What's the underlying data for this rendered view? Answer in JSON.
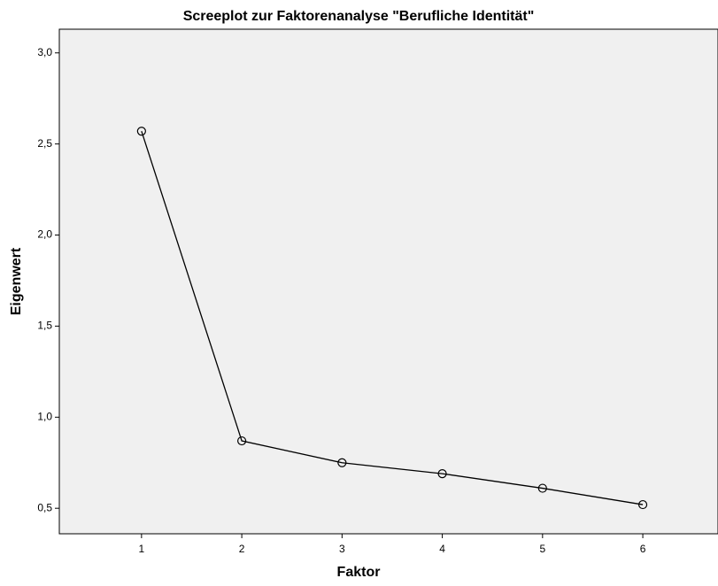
{
  "chart_data": {
    "type": "line",
    "title": "Screeplot zur Faktorenanalyse \"Berufliche Identität\"",
    "xlabel": "Faktor",
    "ylabel": "Eigenwert",
    "x": [
      1,
      2,
      3,
      4,
      5,
      6
    ],
    "series": [
      {
        "name": "Eigenwert",
        "color": "#000000",
        "values": [
          2.57,
          0.87,
          0.75,
          0.69,
          0.61,
          0.52
        ]
      }
    ],
    "xlim": [
      0.18,
      6.75
    ],
    "xticks": [
      1,
      2,
      3,
      4,
      5,
      6
    ],
    "ylim": [
      0.36,
      3.13
    ],
    "yticks": [
      {
        "value": 0.5,
        "label": "0,5"
      },
      {
        "value": 1.0,
        "label": "1,0"
      },
      {
        "value": 1.5,
        "label": "1,5"
      },
      {
        "value": 2.0,
        "label": "2,0"
      },
      {
        "value": 2.5,
        "label": "2,5"
      },
      {
        "value": 3.0,
        "label": "3,0"
      }
    ],
    "grid": false
  }
}
